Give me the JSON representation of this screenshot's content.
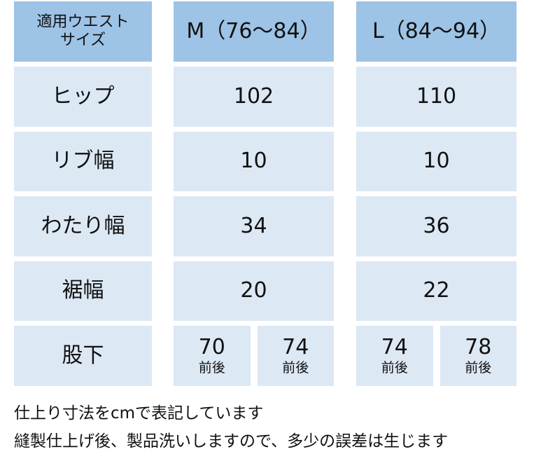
{
  "table": {
    "header": [
      [
        "適用ウエスト",
        "サイズ"
      ],
      "M（76〜84）",
      "L（84〜94）"
    ],
    "rows": [
      {
        "label": "ヒップ",
        "values": [
          102,
          110
        ]
      },
      {
        "label": "リブ幅",
        "values": [
          10,
          10
        ]
      },
      {
        "label": "わたり幅",
        "values": [
          34,
          36
        ]
      },
      {
        "label": "裾幅",
        "values": [
          20,
          22
        ]
      },
      {
        "label": "股下",
        "values": [
          [
            {
              "value": 70,
              "note": "前後"
            },
            {
              "value": 74,
              "note": "前後"
            }
          ],
          [
            {
              "value": 74,
              "note": "前後"
            },
            {
              "value": 78,
              "note": "前後"
            }
          ]
        ]
      }
    ]
  },
  "notes": [
    "仕上り寸法をcmで表記しています",
    "縫製仕上げ後、製品洗いしますので、多少の誤差は生じます"
  ]
}
